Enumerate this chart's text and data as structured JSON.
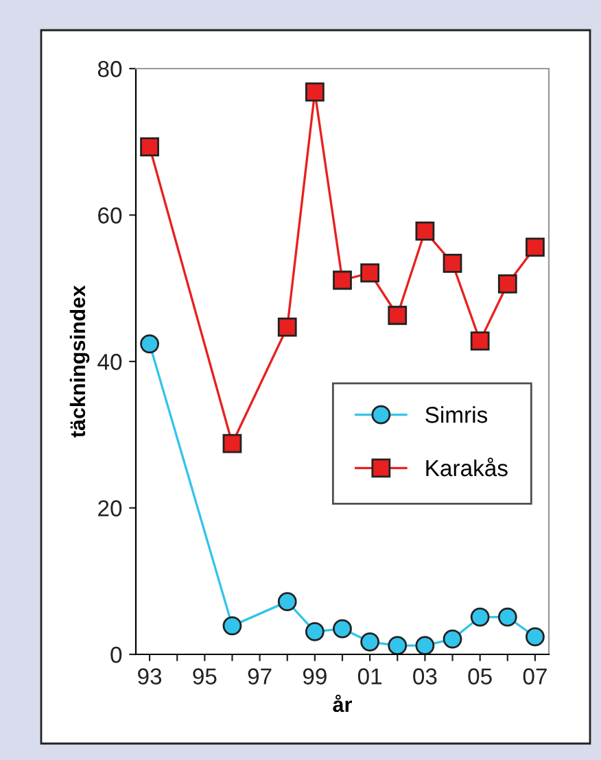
{
  "chart_data": {
    "type": "line",
    "xlabel": "år",
    "ylabel": "täckningsindex",
    "categories": [
      "93",
      null,
      "95",
      null,
      "97",
      null,
      "99",
      null,
      "01",
      null,
      "03",
      null,
      "05",
      null,
      "07"
    ],
    "series": [
      {
        "name": "Simris",
        "color": "#33c4ec",
        "marker": "circle",
        "values": [
          42.4,
          null,
          null,
          3.9,
          null,
          7.2,
          3.1,
          3.5,
          1.7,
          1.2,
          1.2,
          2.1,
          5.1,
          5.1,
          2.4
        ]
      },
      {
        "name": "Karakås",
        "color": "#e82020",
        "marker": "square",
        "values": [
          69.3,
          null,
          null,
          28.8,
          null,
          44.7,
          76.8,
          51.1,
          52.1,
          46.3,
          57.8,
          53.4,
          42.8,
          50.6,
          55.6
        ]
      }
    ],
    "ylim": [
      0,
      80
    ],
    "yticks": [
      0,
      20,
      40,
      60,
      80
    ],
    "grid": false,
    "legend": "right"
  }
}
